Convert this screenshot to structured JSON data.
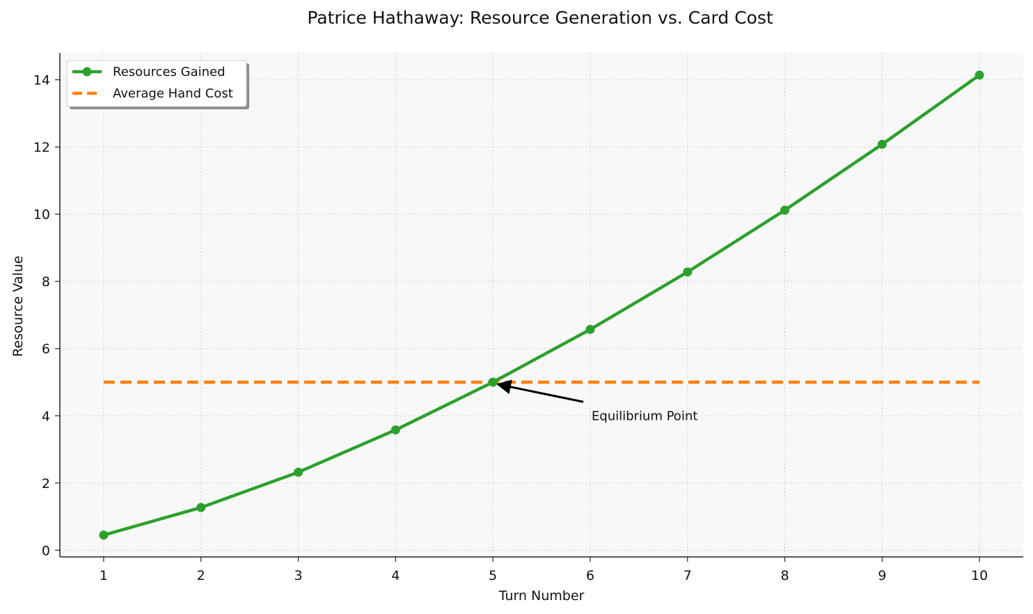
{
  "chart_data": {
    "type": "line",
    "title": "Patrice Hathaway: Resource Generation vs. Card Cost",
    "xlabel": "Turn Number",
    "ylabel": "Resource Value",
    "x": [
      1,
      2,
      3,
      4,
      5,
      6,
      7,
      8,
      9,
      10
    ],
    "xlim": [
      0.55,
      10.45
    ],
    "ylim": [
      -0.2,
      14.8
    ],
    "xticks": [
      "1",
      "2",
      "3",
      "4",
      "5",
      "6",
      "7",
      "8",
      "9",
      "10"
    ],
    "yticks": [
      "0",
      "2",
      "4",
      "6",
      "8",
      "10",
      "12",
      "14"
    ],
    "grid": true,
    "legend_position": "top-left",
    "series": [
      {
        "name": "Resources Gained",
        "style": "solid-with-markers",
        "color": "#2ca02c",
        "values": [
          0.45,
          1.27,
          2.32,
          3.58,
          5.0,
          6.57,
          8.28,
          10.12,
          12.08,
          14.14
        ]
      },
      {
        "name": "Average Hand Cost",
        "style": "dashed",
        "color": "#ff7f0e",
        "values": [
          5,
          5,
          5,
          5,
          5,
          5,
          5,
          5,
          5,
          5
        ]
      }
    ],
    "annotations": [
      {
        "text": "Equilibrium Point",
        "point": [
          5,
          5.0
        ],
        "text_at": [
          6.0,
          4.0
        ]
      }
    ]
  },
  "colors": {
    "plot_background": "#f8f8f8",
    "grid": "#cccccc",
    "axis": "#222222"
  }
}
